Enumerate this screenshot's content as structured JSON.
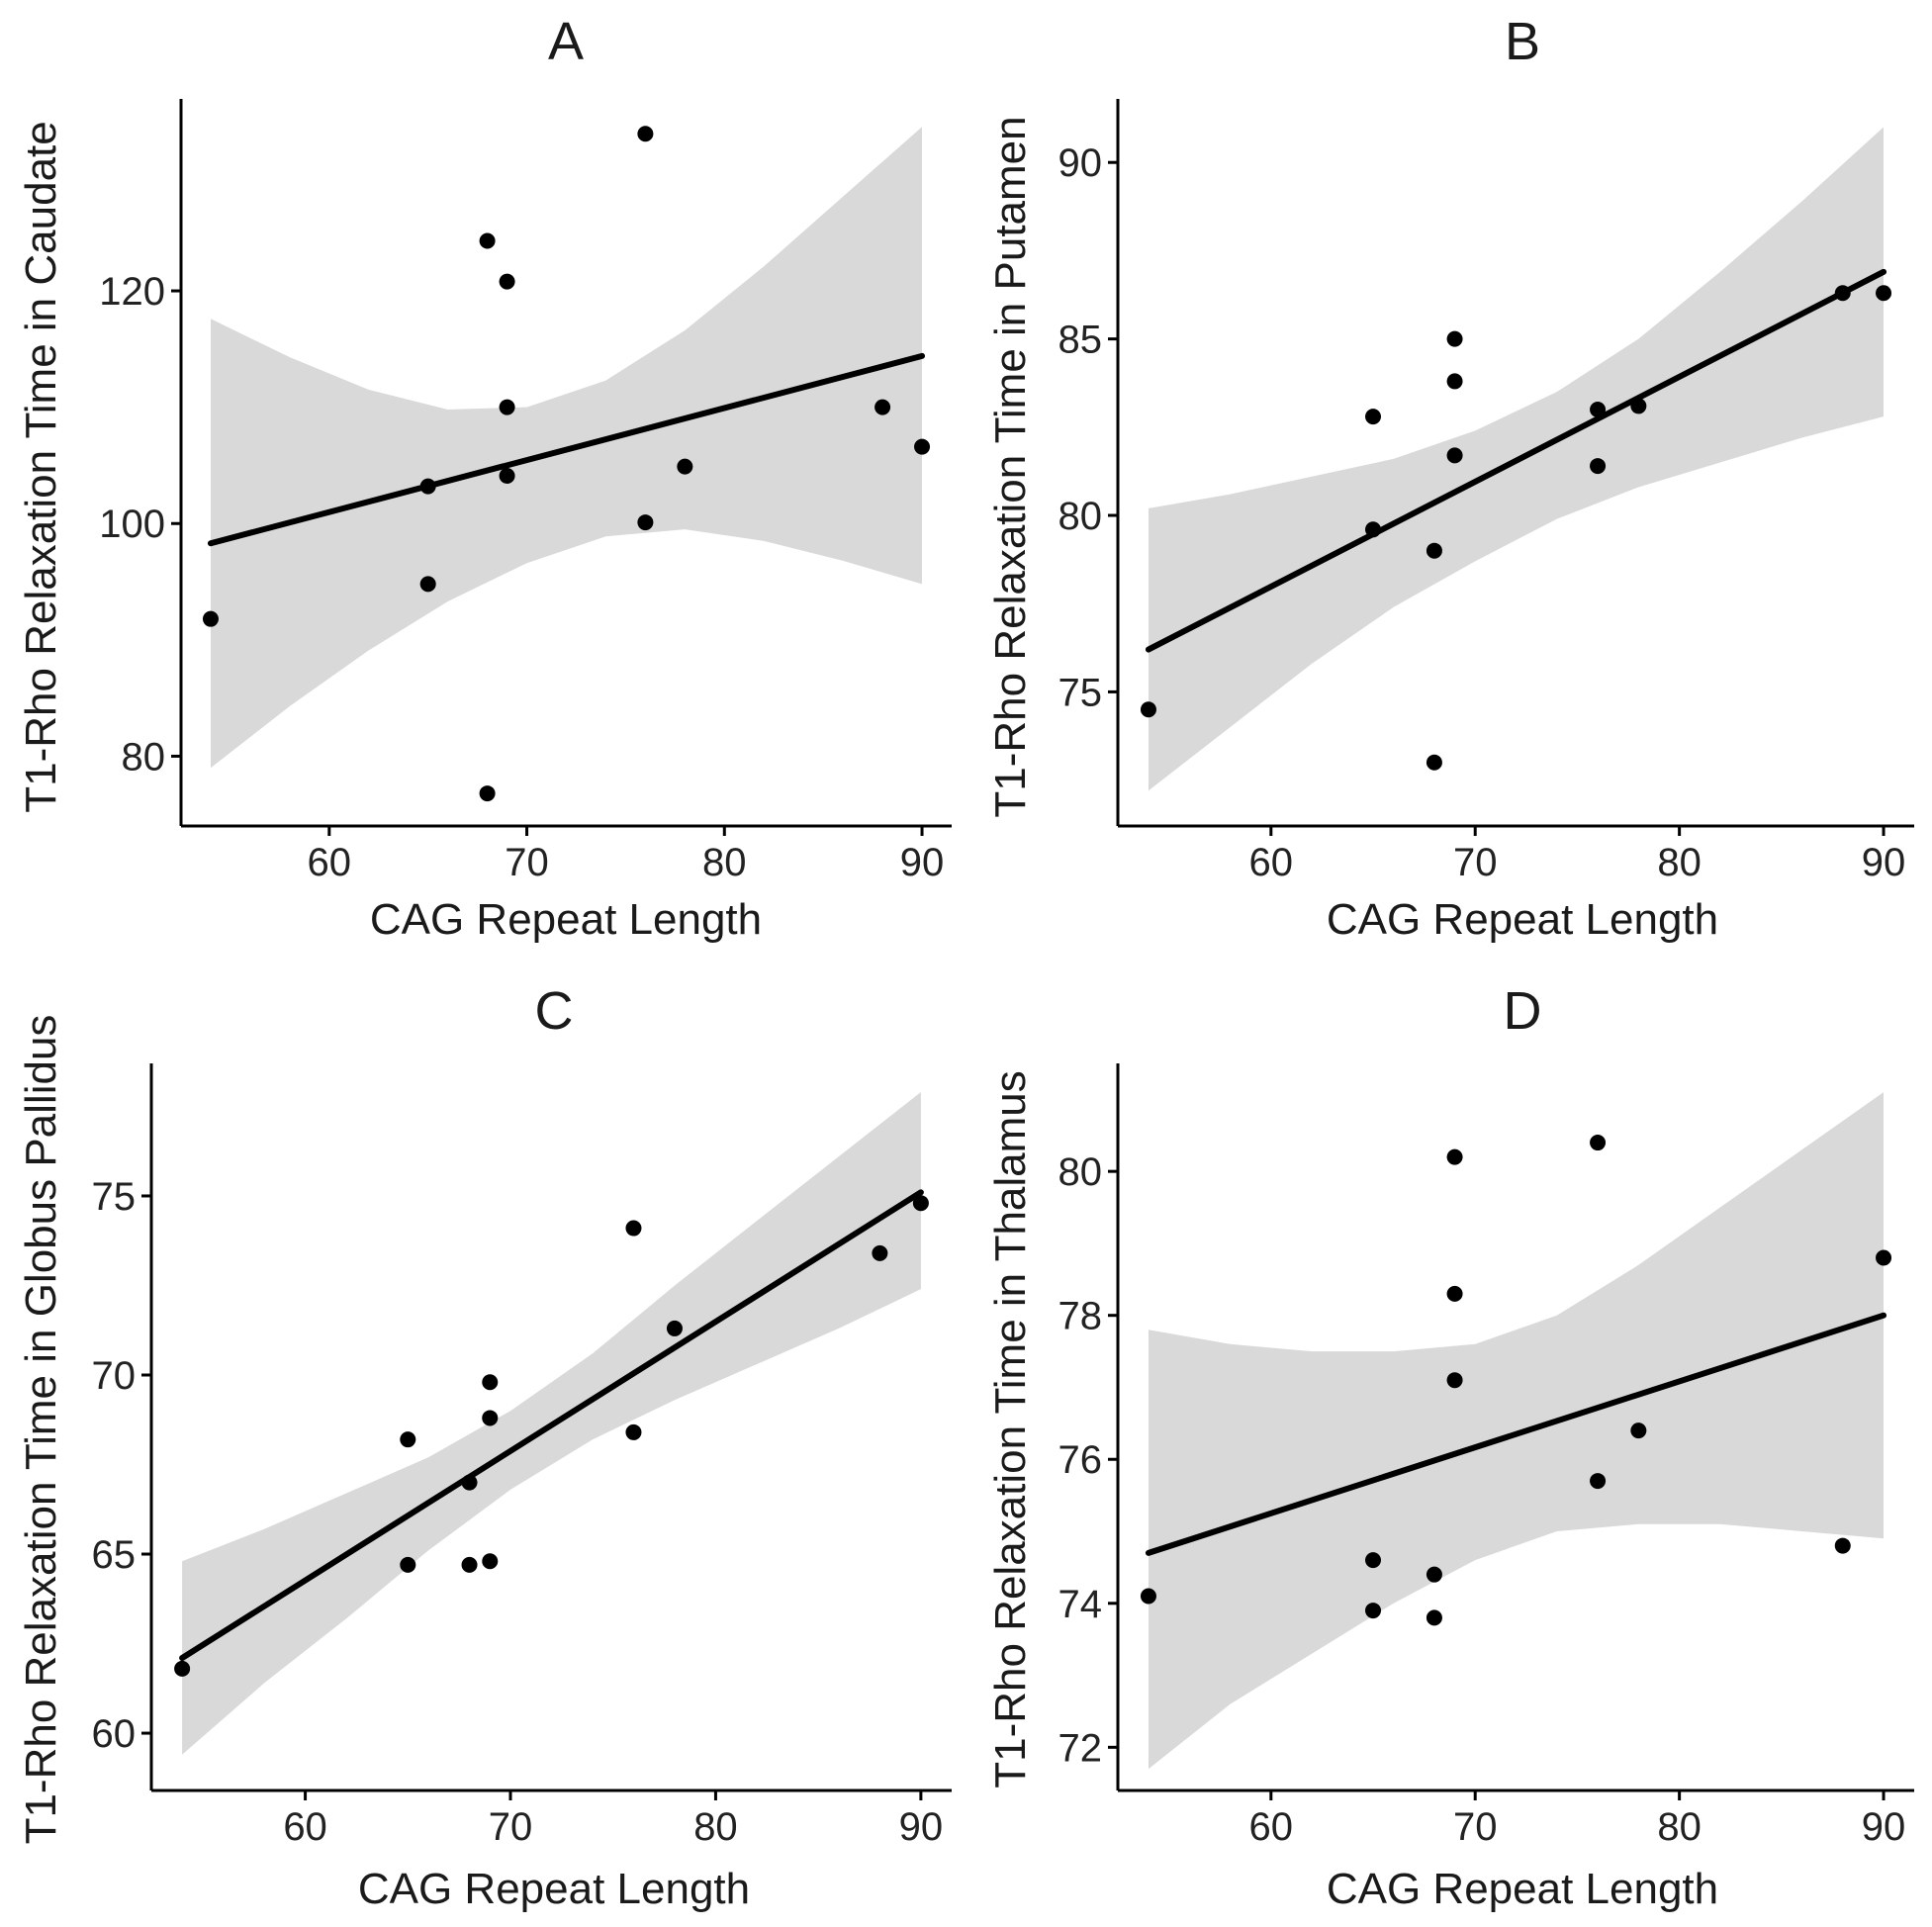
{
  "colors": {
    "points": "#000000",
    "fit_line": "#000000",
    "ci_band": "#d9d9d9"
  },
  "chart_data": [
    {
      "type": "scatter",
      "title": "A",
      "xlabel": "CAG Repeat Length",
      "ylabel": "T1-Rho Relaxation Time in Caudate",
      "xlim": [
        52.5,
        91.5
      ],
      "ylim": [
        74,
        136.5
      ],
      "xticks": [
        60,
        70,
        80,
        90
      ],
      "yticks": [
        80,
        100,
        120
      ],
      "points": [
        {
          "x": 54,
          "y": 91.8
        },
        {
          "x": 65,
          "y": 103.2
        },
        {
          "x": 65,
          "y": 94.8
        },
        {
          "x": 68,
          "y": 124.3
        },
        {
          "x": 68,
          "y": 76.8
        },
        {
          "x": 69,
          "y": 120.8
        },
        {
          "x": 69,
          "y": 110.0
        },
        {
          "x": 69,
          "y": 104.1
        },
        {
          "x": 76,
          "y": 133.5
        },
        {
          "x": 76,
          "y": 100.1
        },
        {
          "x": 78,
          "y": 104.9
        },
        {
          "x": 88,
          "y": 110.0
        },
        {
          "x": 90,
          "y": 106.6
        }
      ],
      "fit": {
        "x": [
          54,
          90
        ],
        "y": [
          98.3,
          114.4
        ]
      },
      "ci": {
        "x": [
          54,
          58,
          62,
          66,
          70,
          74,
          78,
          82,
          86,
          90
        ],
        "upper": [
          117.6,
          114.3,
          111.5,
          109.8,
          110.0,
          112.3,
          116.6,
          122.1,
          128.1,
          134.1
        ],
        "lower": [
          79.0,
          84.3,
          89.1,
          93.3,
          96.6,
          98.9,
          99.5,
          98.5,
          96.8,
          94.8
        ]
      }
    },
    {
      "type": "scatter",
      "title": "B",
      "xlabel": "CAG Repeat Length",
      "ylabel": "T1-Rho Relaxation Time in Putamen",
      "xlim": [
        52.5,
        91.5
      ],
      "ylim": [
        71.2,
        91.8
      ],
      "xticks": [
        60,
        70,
        80,
        90
      ],
      "yticks": [
        75,
        80,
        85,
        90
      ],
      "points": [
        {
          "x": 54,
          "y": 74.5
        },
        {
          "x": 65,
          "y": 82.8
        },
        {
          "x": 65,
          "y": 79.6
        },
        {
          "x": 68,
          "y": 79.0
        },
        {
          "x": 68,
          "y": 73.0
        },
        {
          "x": 69,
          "y": 85.0
        },
        {
          "x": 69,
          "y": 83.8
        },
        {
          "x": 69,
          "y": 81.7
        },
        {
          "x": 76,
          "y": 83.0
        },
        {
          "x": 76,
          "y": 81.4
        },
        {
          "x": 78,
          "y": 83.1
        },
        {
          "x": 88,
          "y": 86.3
        },
        {
          "x": 90,
          "y": 86.3
        }
      ],
      "fit": {
        "x": [
          54,
          90
        ],
        "y": [
          76.2,
          86.9
        ]
      },
      "ci": {
        "x": [
          54,
          58,
          62,
          66,
          70,
          74,
          78,
          82,
          86,
          90
        ],
        "upper": [
          80.2,
          80.6,
          81.1,
          81.6,
          82.4,
          83.5,
          85.0,
          86.9,
          88.9,
          91.0
        ],
        "lower": [
          72.2,
          74.0,
          75.8,
          77.4,
          78.7,
          79.9,
          80.8,
          81.5,
          82.2,
          82.8
        ]
      }
    },
    {
      "type": "scatter",
      "title": "C",
      "xlabel": "CAG Repeat Length",
      "ylabel": "T1-Rho Relaxation Time in Globus Pallidus",
      "xlim": [
        52.5,
        91.5
      ],
      "ylim": [
        58.4,
        78.7
      ],
      "xticks": [
        60,
        70,
        80,
        90
      ],
      "yticks": [
        60,
        65,
        70,
        75
      ],
      "points": [
        {
          "x": 54,
          "y": 61.8
        },
        {
          "x": 65,
          "y": 68.2
        },
        {
          "x": 65,
          "y": 64.7
        },
        {
          "x": 68,
          "y": 67.0
        },
        {
          "x": 68,
          "y": 64.7
        },
        {
          "x": 69,
          "y": 69.8
        },
        {
          "x": 69,
          "y": 68.8
        },
        {
          "x": 69,
          "y": 64.8
        },
        {
          "x": 76,
          "y": 74.1
        },
        {
          "x": 76,
          "y": 68.4
        },
        {
          "x": 78,
          "y": 71.3
        },
        {
          "x": 88,
          "y": 73.4
        },
        {
          "x": 90,
          "y": 74.8
        }
      ],
      "fit": {
        "x": [
          54,
          90
        ],
        "y": [
          62.1,
          75.1
        ]
      },
      "ci": {
        "x": [
          54,
          58,
          62,
          66,
          70,
          74,
          78,
          82,
          86,
          90
        ],
        "upper": [
          64.8,
          65.7,
          66.7,
          67.7,
          69.0,
          70.6,
          72.5,
          74.3,
          76.1,
          77.9
        ],
        "lower": [
          59.4,
          61.4,
          63.2,
          65.1,
          66.8,
          68.2,
          69.3,
          70.3,
          71.3,
          72.4
        ]
      }
    },
    {
      "type": "scatter",
      "title": "D",
      "xlabel": "CAG Repeat Length",
      "ylabel": "T1-Rho Relaxation Time in Thalamus",
      "xlim": [
        52.5,
        91.5
      ],
      "ylim": [
        71.4,
        81.5
      ],
      "xticks": [
        60,
        70,
        80,
        90
      ],
      "yticks": [
        72,
        74,
        76,
        78,
        80
      ],
      "points": [
        {
          "x": 54,
          "y": 74.1
        },
        {
          "x": 65,
          "y": 74.6
        },
        {
          "x": 65,
          "y": 73.9
        },
        {
          "x": 68,
          "y": 74.4
        },
        {
          "x": 68,
          "y": 73.8
        },
        {
          "x": 69,
          "y": 80.2
        },
        {
          "x": 69,
          "y": 78.3
        },
        {
          "x": 69,
          "y": 77.1
        },
        {
          "x": 76,
          "y": 80.4
        },
        {
          "x": 76,
          "y": 75.7
        },
        {
          "x": 78,
          "y": 76.4
        },
        {
          "x": 88,
          "y": 74.8
        },
        {
          "x": 90,
          "y": 78.8
        }
      ],
      "fit": {
        "x": [
          54,
          90
        ],
        "y": [
          74.7,
          78.0
        ]
      },
      "ci": {
        "x": [
          54,
          58,
          62,
          66,
          70,
          74,
          78,
          82,
          86,
          90
        ],
        "upper": [
          77.8,
          77.6,
          77.5,
          77.5,
          77.6,
          78.0,
          78.7,
          79.5,
          80.3,
          81.1
        ],
        "lower": [
          71.7,
          72.6,
          73.3,
          74.0,
          74.6,
          75.0,
          75.1,
          75.1,
          75.0,
          74.9
        ]
      }
    }
  ]
}
